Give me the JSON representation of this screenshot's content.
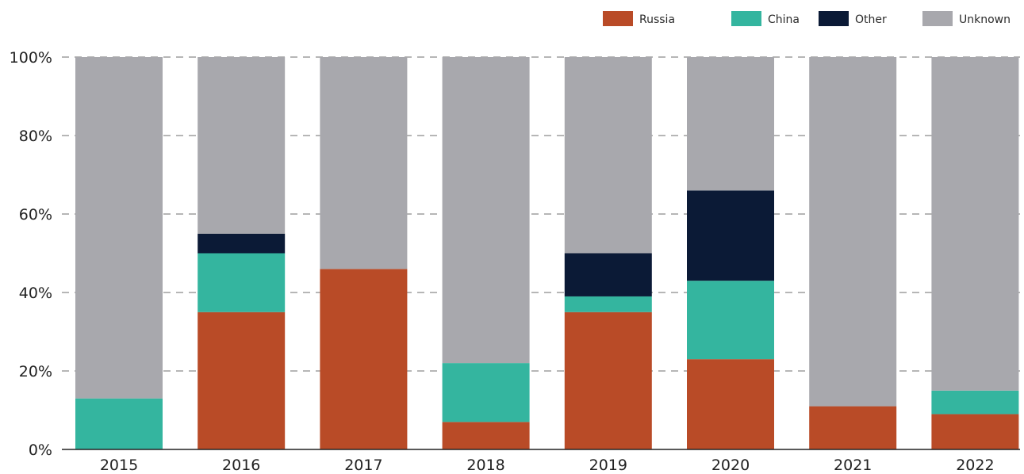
{
  "chart_data": {
    "type": "bar",
    "stacked": true,
    "title": "",
    "xlabel": "",
    "ylabel": "",
    "ylim": [
      0,
      100
    ],
    "y_ticks": [
      "0%",
      "20%",
      "40%",
      "60%",
      "80%",
      "100%"
    ],
    "grid": "horizontal dashed",
    "legend_position": "top-right",
    "categories": [
      "2015",
      "2016",
      "2017",
      "2018",
      "2019",
      "2020",
      "2021",
      "2022"
    ],
    "series": [
      {
        "name": "Russia",
        "color": "#b94b27",
        "values": [
          0,
          35,
          46,
          7,
          35,
          23,
          11,
          9
        ]
      },
      {
        "name": "China",
        "color": "#34b59f",
        "values": [
          13,
          15,
          0,
          15,
          4,
          20,
          0,
          6
        ]
      },
      {
        "name": "Other",
        "color": "#0b1a36",
        "values": [
          0,
          5,
          0,
          0,
          11,
          23,
          0,
          0
        ]
      },
      {
        "name": "Unknown",
        "color": "#a8a8ad",
        "values": [
          87,
          45,
          54,
          78,
          50,
          34,
          89,
          85
        ]
      }
    ]
  }
}
